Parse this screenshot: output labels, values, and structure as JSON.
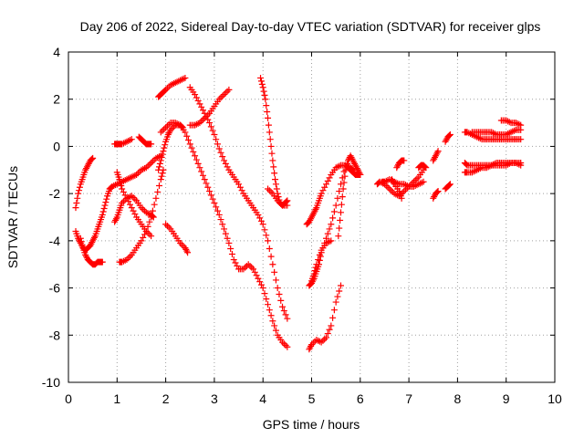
{
  "chart_data": {
    "type": "scatter",
    "title": "Day 206 of 2022, Sidereal Day-to-day VTEC variation (SDTVAR) for receiver glps",
    "xlabel": "GPS time / hours",
    "ylabel": "SDTVAR / TECUs",
    "xlim": [
      0,
      10
    ],
    "ylim": [
      -10,
      4
    ],
    "xticks": [
      "0",
      "1",
      "2",
      "3",
      "4",
      "5",
      "6",
      "7",
      "8",
      "9",
      "10"
    ],
    "yticks": [
      "-10",
      "-8",
      "-6",
      "-4",
      "-2",
      "0",
      "2",
      "4"
    ],
    "grid": true,
    "marker": "+",
    "marker_color": "#ff0000",
    "segments": [
      {
        "x": [
          0.15,
          0.2,
          0.25,
          0.3,
          0.35,
          0.4,
          0.45,
          0.5
        ],
        "y": [
          -2.6,
          -2.0,
          -1.6,
          -1.3,
          -1.0,
          -0.8,
          -0.6,
          -0.5
        ]
      },
      {
        "x": [
          0.15,
          0.2,
          0.25,
          0.3,
          0.35,
          0.4,
          0.45,
          0.5,
          0.55,
          0.6,
          0.65,
          0.7,
          0.75,
          0.8,
          0.85
        ],
        "y": [
          -3.6,
          -3.9,
          -4.1,
          -4.3,
          -4.4,
          -4.3,
          -4.2,
          -4.0,
          -3.8,
          -3.5,
          -3.2,
          -2.9,
          -2.5,
          -2.1,
          -1.8
        ]
      },
      {
        "x": [
          0.25,
          0.3,
          0.35,
          0.4,
          0.45,
          0.5,
          0.55,
          0.6,
          0.65,
          0.7
        ],
        "y": [
          -3.9,
          -4.3,
          -4.6,
          -4.8,
          -4.9,
          -5.0,
          -5.0,
          -4.9,
          -4.9,
          -4.9
        ]
      },
      {
        "x": [
          0.85,
          0.9,
          1.0,
          1.1,
          1.2,
          1.3,
          1.4,
          1.5,
          1.6,
          1.7,
          1.8,
          1.9
        ],
        "y": [
          -1.8,
          -1.7,
          -1.6,
          -1.5,
          -1.4,
          -1.3,
          -1.2,
          -1.0,
          -0.9,
          -0.7,
          -0.5,
          -0.4
        ]
      },
      {
        "x": [
          0.95,
          1.0,
          1.05,
          1.1,
          1.2,
          1.3,
          1.4,
          1.5,
          1.6,
          1.7,
          1.75
        ],
        "y": [
          -3.2,
          -3.0,
          -2.7,
          -2.4,
          -2.2,
          -2.1,
          -2.3,
          -2.6,
          -2.8,
          -2.9,
          -3.0
        ]
      },
      {
        "x": [
          1.0,
          1.05,
          1.1,
          1.2,
          1.3,
          1.4,
          1.5,
          1.6,
          1.7
        ],
        "y": [
          -1.1,
          -1.4,
          -1.8,
          -2.2,
          -2.6,
          -3.0,
          -3.3,
          -3.6,
          -3.8
        ]
      },
      {
        "x": [
          0.95,
          1.0,
          1.05,
          1.1,
          1.2,
          1.3
        ],
        "y": [
          0.1,
          0.1,
          0.1,
          0.1,
          0.2,
          0.3
        ]
      },
      {
        "x": [
          1.05,
          1.1,
          1.2,
          1.3,
          1.4,
          1.5,
          1.6,
          1.7,
          1.8,
          1.9,
          1.95
        ],
        "y": [
          -4.9,
          -4.9,
          -4.8,
          -4.6,
          -4.3,
          -4.0,
          -3.6,
          -3.0,
          -2.2,
          -1.4,
          -1.0
        ]
      },
      {
        "x": [
          1.45,
          1.5,
          1.55,
          1.6,
          1.65,
          1.7
        ],
        "y": [
          0.4,
          0.3,
          0.2,
          0.1,
          0.1,
          0.1
        ]
      },
      {
        "x": [
          1.85,
          1.9,
          1.95,
          2.0,
          2.05,
          2.1,
          2.2,
          2.3,
          2.35
        ],
        "y": [
          -1.0,
          -0.6,
          -0.2,
          0.2,
          0.5,
          0.7,
          0.9,
          0.9,
          0.8
        ]
      },
      {
        "x": [
          1.85,
          1.9,
          1.95,
          2.0,
          2.1,
          2.2,
          2.3,
          2.4
        ],
        "y": [
          2.1,
          2.2,
          2.3,
          2.4,
          2.6,
          2.7,
          2.8,
          2.9
        ]
      },
      {
        "x": [
          2.0,
          2.1,
          2.2,
          2.3,
          2.4,
          2.45
        ],
        "y": [
          -3.3,
          -3.5,
          -3.8,
          -4.1,
          -4.3,
          -4.5
        ]
      },
      {
        "x": [
          1.9,
          2.0,
          2.1,
          2.2,
          2.3,
          2.4,
          2.5,
          2.6,
          2.7,
          2.8,
          2.9,
          3.0,
          3.1,
          3.2,
          3.3,
          3.4,
          3.5,
          3.6,
          3.7,
          3.8,
          3.9,
          4.0,
          4.1,
          4.2,
          4.3,
          4.4,
          4.5
        ],
        "y": [
          0.6,
          0.8,
          1.0,
          1.0,
          0.9,
          0.6,
          0.1,
          -0.4,
          -0.9,
          -1.4,
          -1.9,
          -2.4,
          -2.9,
          -3.5,
          -4.1,
          -4.8,
          -5.2,
          -5.2,
          -5.0,
          -5.2,
          -5.6,
          -6.0,
          -6.7,
          -7.4,
          -8.0,
          -8.3,
          -8.5
        ]
      },
      {
        "x": [
          2.5,
          2.6,
          2.7,
          2.8,
          2.9,
          3.0,
          3.1,
          3.2,
          3.3,
          3.4,
          3.5,
          3.6,
          3.7,
          3.8,
          3.9,
          4.0,
          4.1,
          4.2,
          4.3,
          4.4,
          4.5
        ],
        "y": [
          2.5,
          2.2,
          1.8,
          1.4,
          1.0,
          0.5,
          -0.1,
          -0.6,
          -1.0,
          -1.3,
          -1.6,
          -2.0,
          -2.3,
          -2.6,
          -2.9,
          -3.3,
          -4.0,
          -5.0,
          -6.0,
          -6.8,
          -7.3
        ]
      },
      {
        "x": [
          2.5,
          2.6,
          2.7,
          2.8,
          2.9,
          3.0,
          3.1,
          3.2,
          3.3
        ],
        "y": [
          0.9,
          0.9,
          1.0,
          1.2,
          1.4,
          1.7,
          2.0,
          2.2,
          2.4
        ]
      },
      {
        "x": [
          3.95,
          4.0,
          4.05,
          4.1,
          4.15,
          4.2,
          4.25,
          4.3,
          4.35,
          4.4,
          4.45,
          4.5
        ],
        "y": [
          2.9,
          2.5,
          2.0,
          1.2,
          0.3,
          -0.6,
          -1.4,
          -2.0,
          -2.4,
          -2.5,
          -2.4,
          -2.3
        ]
      },
      {
        "x": [
          4.1,
          4.2,
          4.3,
          4.4,
          4.5
        ],
        "y": [
          -1.8,
          -2.0,
          -2.3,
          -2.5,
          -2.5
        ]
      },
      {
        "x": [
          4.9,
          4.95,
          5.0,
          5.05,
          5.1,
          5.15,
          5.2,
          5.3,
          5.4,
          5.5,
          5.6,
          5.7,
          5.8,
          5.85
        ],
        "y": [
          -3.3,
          -3.2,
          -3.0,
          -2.8,
          -2.6,
          -2.3,
          -2.0,
          -1.6,
          -1.2,
          -0.9,
          -0.8,
          -0.8,
          -0.9,
          -1.0
        ]
      },
      {
        "x": [
          4.95,
          5.0,
          5.05,
          5.1,
          5.15,
          5.2,
          5.3,
          5.4,
          5.5,
          5.6,
          5.7
        ],
        "y": [
          -5.9,
          -5.8,
          -5.6,
          -5.3,
          -5.0,
          -4.5,
          -3.9,
          -3.3,
          -2.5,
          -1.6,
          -0.8
        ]
      },
      {
        "x": [
          4.95,
          5.0,
          5.1,
          5.2,
          5.3,
          5.4,
          5.5,
          5.6
        ],
        "y": [
          -8.6,
          -8.4,
          -8.2,
          -8.3,
          -8.1,
          -7.6,
          -6.6,
          -5.9
        ]
      },
      {
        "x": [
          5.0,
          5.05,
          5.1,
          5.2,
          5.3,
          5.4
        ],
        "y": [
          -5.7,
          -5.4,
          -5.0,
          -4.4,
          -4.1,
          -4.0
        ]
      },
      {
        "x": [
          5.55,
          5.6,
          5.65,
          5.7,
          5.75,
          5.8,
          5.85,
          5.9,
          5.95,
          6.0
        ],
        "y": [
          -3.8,
          -2.8,
          -1.8,
          -1.0,
          -0.6,
          -0.4,
          -0.6,
          -0.8,
          -1.0,
          -1.2
        ]
      },
      {
        "x": [
          5.75,
          5.8,
          5.85,
          5.9,
          5.95,
          6.0
        ],
        "y": [
          -0.9,
          -1.0,
          -1.1,
          -1.2,
          -1.2,
          -1.2
        ]
      },
      {
        "x": [
          6.35,
          6.4,
          6.5,
          6.6,
          6.7,
          6.8,
          6.9,
          7.0,
          7.1,
          7.2,
          7.3
        ],
        "y": [
          -1.6,
          -1.5,
          -1.6,
          -1.8,
          -2.0,
          -2.1,
          -1.9,
          -1.7,
          -1.5,
          -1.3,
          -1.0
        ]
      },
      {
        "x": [
          6.45,
          6.5,
          6.6,
          6.7,
          6.8,
          6.9,
          7.0,
          7.1,
          7.2,
          7.3
        ],
        "y": [
          -1.5,
          -1.5,
          -1.4,
          -1.5,
          -1.6,
          -1.6,
          -1.7,
          -1.7,
          -1.6,
          -1.5
        ]
      },
      {
        "x": [
          6.65,
          6.7,
          6.8,
          6.85
        ],
        "y": [
          -1.4,
          -1.6,
          -1.9,
          -2.2
        ]
      },
      {
        "x": [
          6.75,
          6.8,
          6.85,
          6.9
        ],
        "y": [
          -0.9,
          -0.7,
          -0.6,
          -0.6
        ]
      },
      {
        "x": [
          7.2,
          7.25,
          7.3,
          7.35
        ],
        "y": [
          -0.9,
          -0.8,
          -0.8,
          -0.9
        ]
      },
      {
        "x": [
          7.5,
          7.55,
          7.6
        ],
        "y": [
          -2.2,
          -2.0,
          -1.9
        ]
      },
      {
        "x": [
          7.5,
          7.55,
          7.6
        ],
        "y": [
          -0.6,
          -0.4,
          -0.2
        ]
      },
      {
        "x": [
          7.75,
          7.8,
          7.85
        ],
        "y": [
          -1.8,
          -1.7,
          -1.6
        ]
      },
      {
        "x": [
          7.75,
          7.8,
          7.85
        ],
        "y": [
          0.2,
          0.4,
          0.5
        ]
      },
      {
        "x": [
          8.15,
          8.2,
          8.3,
          8.4,
          8.5,
          8.6,
          8.7,
          8.8,
          8.9,
          9.0,
          9.1,
          9.2,
          9.3
        ],
        "y": [
          -1.1,
          -1.1,
          -1.1,
          -1.0,
          -0.9,
          -0.9,
          -0.8,
          -0.8,
          -0.8,
          -0.8,
          -0.7,
          -0.7,
          -0.8
        ]
      },
      {
        "x": [
          8.15,
          8.2,
          8.3,
          8.4,
          8.5,
          8.6,
          8.7,
          8.8,
          8.9,
          9.0,
          9.1,
          9.2,
          9.3
        ],
        "y": [
          -0.7,
          -0.8,
          -0.8,
          -0.8,
          -0.8,
          -0.8,
          -0.8,
          -0.7,
          -0.7,
          -0.7,
          -0.7,
          -0.7,
          -0.7
        ]
      },
      {
        "x": [
          8.15,
          8.2,
          8.3,
          8.4,
          8.5,
          8.6,
          8.7,
          8.8,
          8.9,
          9.0,
          9.1,
          9.2,
          9.3
        ],
        "y": [
          0.6,
          0.6,
          0.5,
          0.4,
          0.3,
          0.3,
          0.3,
          0.3,
          0.3,
          0.3,
          0.3,
          0.3,
          0.3
        ]
      },
      {
        "x": [
          8.3,
          8.4,
          8.5,
          8.6,
          8.7,
          8.8,
          8.9,
          9.0,
          9.1,
          9.2,
          9.3
        ],
        "y": [
          0.6,
          0.6,
          0.6,
          0.6,
          0.6,
          0.5,
          0.5,
          0.5,
          0.6,
          0.7,
          0.7
        ]
      },
      {
        "x": [
          8.9,
          9.0,
          9.1,
          9.2,
          9.3
        ],
        "y": [
          1.1,
          1.1,
          1.0,
          1.0,
          0.9
        ]
      }
    ]
  }
}
